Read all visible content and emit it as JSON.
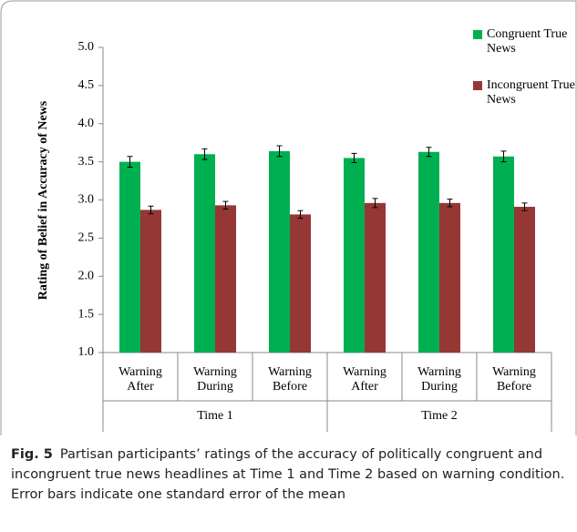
{
  "chart_data": {
    "type": "bar",
    "ylabel": "Rating of Belief in Accuracy of News",
    "categories": [
      "Warning After",
      "Warning During",
      "Warning Before",
      "Warning After",
      "Warning During",
      "Warning Before"
    ],
    "groups": [
      "Time 1",
      "Time 2"
    ],
    "series": [
      {
        "name": "Congruent True News",
        "color": "#00b050",
        "values": [
          3.5,
          3.6,
          3.64,
          3.55,
          3.63,
          3.57
        ],
        "errors": [
          0.07,
          0.07,
          0.07,
          0.06,
          0.06,
          0.07
        ]
      },
      {
        "name": "Incongruent True News",
        "color": "#953735",
        "values": [
          2.87,
          2.93,
          2.81,
          2.96,
          2.96,
          2.91
        ],
        "errors": [
          0.05,
          0.05,
          0.05,
          0.06,
          0.05,
          0.05
        ]
      }
    ],
    "ylim": [
      1,
      5
    ],
    "yticks": [
      {
        "value": 1,
        "label": "1.0"
      },
      1.5,
      {
        "value": 2,
        "label": "2.0"
      },
      2.5,
      {
        "value": 3,
        "label": "3.0"
      },
      3.5,
      {
        "value": 4,
        "label": "4.0"
      },
      4.5,
      {
        "value": 5,
        "label": "5.0"
      }
    ],
    "legend": "upper right",
    "caption_label": "Fig. 5",
    "caption": "Partisan participants’ ratings of the accuracy of politically congruent and incongruent true news headlines at Time 1 and Time 2 based on warning condition. Error bars indicate one standard error of the mean"
  }
}
